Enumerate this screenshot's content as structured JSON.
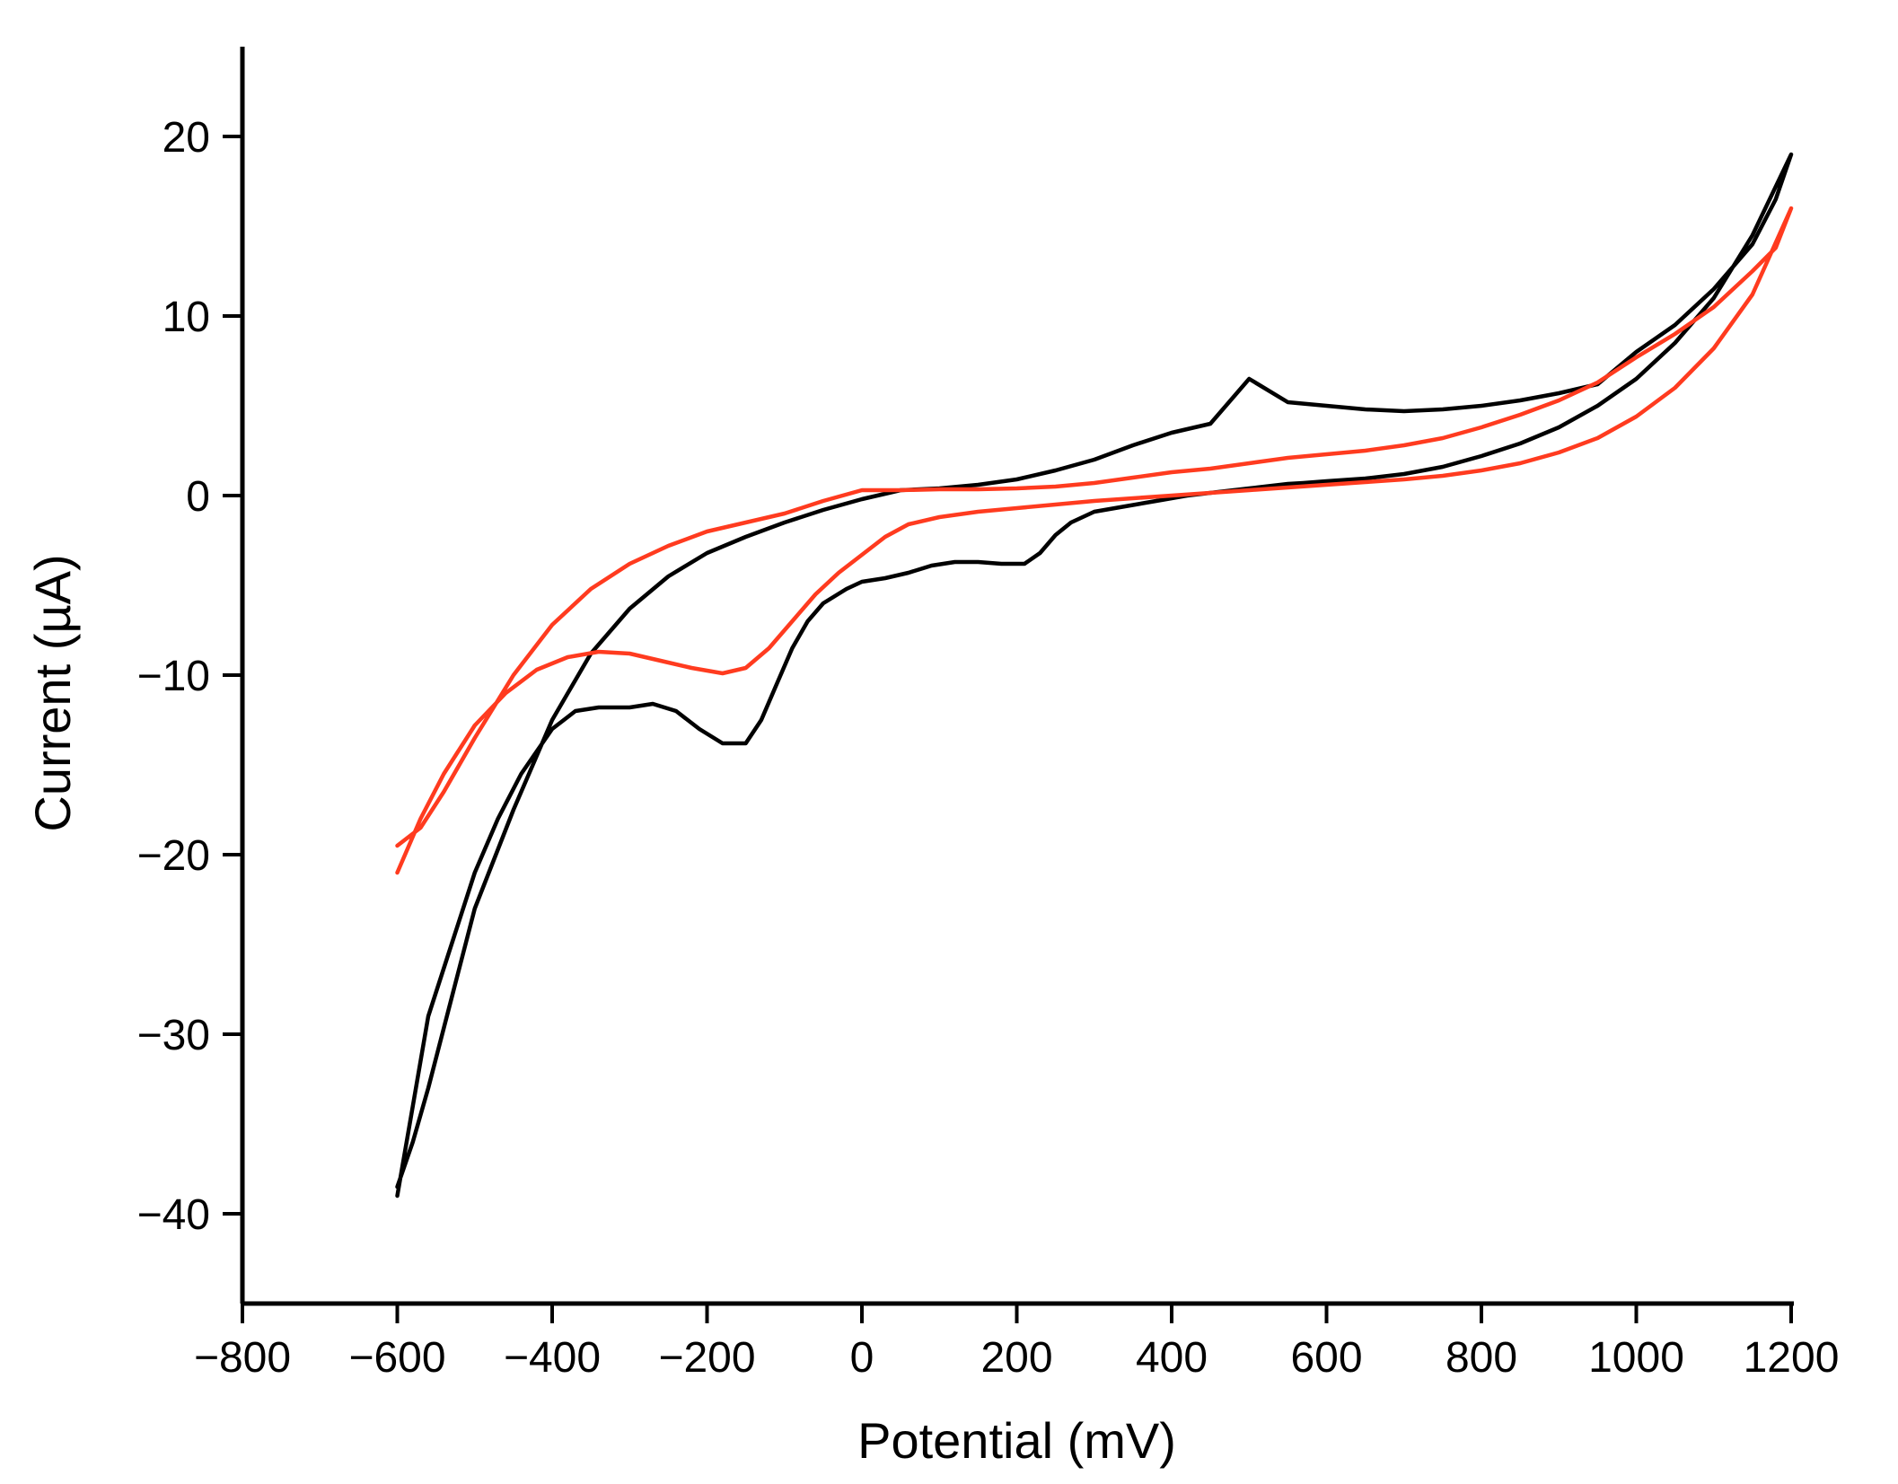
{
  "chart_data": {
    "type": "line",
    "title": "",
    "xlabel": "Potential (mV)",
    "ylabel": "Current (µA)",
    "xlim": [
      -800,
      1200
    ],
    "ylim": [
      -45,
      25
    ],
    "x_ticks": [
      -800,
      -600,
      -400,
      -200,
      0,
      200,
      400,
      600,
      800,
      1000,
      1200
    ],
    "x_tick_labels": [
      "−800",
      "−600",
      "−400",
      "−200",
      "0",
      "200",
      "400",
      "600",
      "800",
      "1000",
      "1200"
    ],
    "y_ticks": [
      -40,
      -30,
      -20,
      -10,
      0,
      10,
      20
    ],
    "y_tick_labels": [
      "−40",
      "−30",
      "−20",
      "−10",
      "0",
      "10",
      "20"
    ],
    "grid": false,
    "legend": "none",
    "series": [
      {
        "color": "#000000",
        "x": [
          -600,
          -580,
          -560,
          -530,
          -500,
          -470,
          -440,
          -400,
          -370,
          -340,
          -300,
          -270,
          -240,
          -210,
          -180,
          -150,
          -130,
          -110,
          -90,
          -70,
          -50,
          -20,
          0,
          30,
          60,
          90,
          120,
          150,
          180,
          210,
          230,
          250,
          270,
          300,
          340,
          380,
          420,
          460,
          480,
          500,
          510,
          520,
          530,
          540,
          550,
          570,
          600,
          650,
          700,
          750,
          800,
          850,
          900,
          950,
          1000,
          1050,
          1100,
          1150,
          1200,
          1180,
          1150,
          1100,
          1050,
          1000,
          950,
          900,
          850,
          800,
          750,
          700,
          650,
          600,
          550,
          500,
          450,
          400,
          350,
          300,
          250,
          200,
          150,
          100,
          50,
          0,
          -50,
          -100,
          -150,
          -200,
          -250,
          -300,
          -350,
          -400,
          -450,
          -500,
          -530,
          -560,
          -580,
          -600
        ],
        "y": [
          -39,
          -34,
          -29,
          -25,
          -21,
          -18,
          -15.5,
          -13,
          -12,
          -11.8,
          -11.8,
          -11.6,
          -12,
          -13,
          -13.8,
          -13.8,
          -12.5,
          -10.5,
          -8.5,
          -7,
          -6,
          -5.2,
          -4.8,
          -4.6,
          -4.3,
          -3.9,
          -3.7,
          -3.7,
          -3.8,
          -3.8,
          -3.2,
          -2.2,
          -1.5,
          -0.9,
          -0.6,
          -0.3,
          0,
          0.2,
          0.3,
          0.4,
          0.45,
          0.5,
          0.55,
          0.6,
          0.65,
          0.7,
          0.8,
          0.95,
          1.2,
          1.6,
          2.2,
          2.9,
          3.8,
          5,
          6.5,
          8.5,
          11,
          14.5,
          19,
          16.5,
          14,
          11.5,
          9.5,
          8,
          6.2,
          5.7,
          5.3,
          5,
          4.8,
          4.7,
          4.8,
          5,
          5.2,
          6.5,
          4,
          3.5,
          2.8,
          2,
          1.4,
          0.9,
          0.6,
          0.4,
          0.3,
          -0.2,
          -0.8,
          -1.5,
          -2.3,
          -3.2,
          -4.5,
          -6.3,
          -8.8,
          -12.5,
          -17.5,
          -23,
          -28,
          -33,
          -36,
          -38.5
        ]
      },
      {
        "color": "#ff3b1f",
        "x": [
          -600,
          -570,
          -540,
          -500,
          -460,
          -420,
          -380,
          -340,
          -300,
          -260,
          -220,
          -180,
          -150,
          -120,
          -90,
          -60,
          -30,
          0,
          30,
          60,
          100,
          150,
          200,
          250,
          300,
          350,
          400,
          450,
          500,
          550,
          600,
          650,
          700,
          750,
          800,
          850,
          900,
          950,
          1000,
          1050,
          1100,
          1150,
          1200,
          1180,
          1150,
          1100,
          1050,
          1000,
          950,
          900,
          850,
          800,
          750,
          700,
          650,
          600,
          550,
          500,
          450,
          400,
          350,
          300,
          250,
          200,
          150,
          100,
          50,
          0,
          -50,
          -100,
          -150,
          -200,
          -250,
          -300,
          -350,
          -400,
          -450,
          -500,
          -540,
          -570,
          -600
        ],
        "y": [
          -21,
          -18,
          -15.5,
          -12.8,
          -11,
          -9.7,
          -9,
          -8.7,
          -8.8,
          -9.2,
          -9.6,
          -9.9,
          -9.6,
          -8.5,
          -7,
          -5.5,
          -4.3,
          -3.3,
          -2.3,
          -1.6,
          -1.2,
          -0.9,
          -0.7,
          -0.5,
          -0.3,
          -0.15,
          0,
          0.15,
          0.3,
          0.45,
          0.6,
          0.75,
          0.9,
          1.1,
          1.4,
          1.8,
          2.4,
          3.2,
          4.4,
          6,
          8.2,
          11.2,
          16,
          13.8,
          12.5,
          10.5,
          9,
          7.7,
          6.3,
          5.3,
          4.5,
          3.8,
          3.2,
          2.8,
          2.5,
          2.3,
          2.1,
          1.8,
          1.5,
          1.3,
          1.0,
          0.7,
          0.5,
          0.4,
          0.35,
          0.35,
          0.3,
          0.3,
          -0.3,
          -1.0,
          -1.5,
          -2.0,
          -2.8,
          -3.8,
          -5.2,
          -7.2,
          -10,
          -13.5,
          -16.5,
          -18.5,
          -19.5
        ]
      }
    ]
  }
}
